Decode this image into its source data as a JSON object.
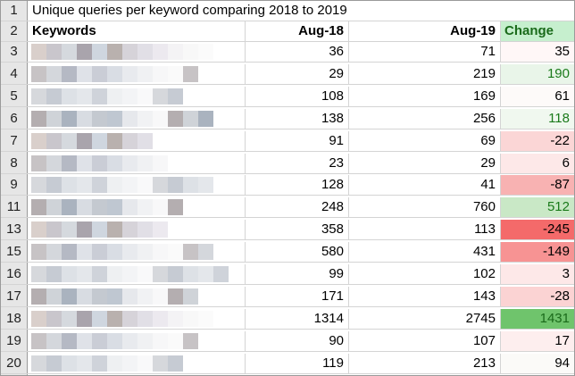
{
  "sheet": {
    "title": "Unique queries per keyword comparing 2018 to 2019",
    "headers": {
      "row": "2",
      "keywords": "Keywords",
      "aug18": "Aug-18",
      "aug19": "Aug-19",
      "change": "Change"
    },
    "title_row": "1",
    "header_bg_change": "#c6efce",
    "rows": [
      {
        "row": "3",
        "aug18": "36",
        "aug19": "71",
        "change": "35",
        "change_color": "#000000",
        "bg": "#fff7f7"
      },
      {
        "row": "4",
        "aug18": "29",
        "aug19": "219",
        "change": "190",
        "change_color": "#1a7a1a",
        "bg": "#e9f5e9"
      },
      {
        "row": "5",
        "aug18": "108",
        "aug19": "169",
        "change": "61",
        "change_color": "#000000",
        "bg": "#fdfaf9"
      },
      {
        "row": "6",
        "aug18": "138",
        "aug19": "256",
        "change": "118",
        "change_color": "#1a7a1a",
        "bg": "#f0f8ef"
      },
      {
        "row": "7",
        "aug18": "91",
        "aug19": "69",
        "change": "-22",
        "change_color": "#000000",
        "bg": "#fbd6d6"
      },
      {
        "row": "8",
        "aug18": "23",
        "aug19": "29",
        "change": "6",
        "change_color": "#000000",
        "bg": "#fde8e8"
      },
      {
        "row": "9",
        "aug18": "128",
        "aug19": "41",
        "change": "-87",
        "change_color": "#000000",
        "bg": "#f8b2b2"
      },
      {
        "row": "11",
        "aug18": "248",
        "aug19": "760",
        "change": "512",
        "change_color": "#1a7a1a",
        "bg": "#c9e8c6"
      },
      {
        "row": "13",
        "aug18": "358",
        "aug19": "113",
        "change": "-245",
        "change_color": "#000000",
        "bg": "#f46a6a"
      },
      {
        "row": "15",
        "aug18": "580",
        "aug19": "431",
        "change": "-149",
        "change_color": "#000000",
        "bg": "#f79393"
      },
      {
        "row": "16",
        "aug18": "99",
        "aug19": "102",
        "change": "3",
        "change_color": "#000000",
        "bg": "#fde8e8"
      },
      {
        "row": "17",
        "aug18": "171",
        "aug19": "143",
        "change": "-28",
        "change_color": "#000000",
        "bg": "#fbd3d3"
      },
      {
        "row": "18",
        "aug18": "1314",
        "aug19": "2745",
        "change": "1431",
        "change_color": "#1a6a1a",
        "bg": "#6fc46c"
      },
      {
        "row": "19",
        "aug18": "90",
        "aug19": "107",
        "change": "17",
        "change_color": "#000000",
        "bg": "#fdeeee"
      },
      {
        "row": "20",
        "aug18": "119",
        "aug19": "213",
        "change": "94",
        "change_color": "#000000",
        "bg": "#fbfaf8"
      }
    ]
  }
}
